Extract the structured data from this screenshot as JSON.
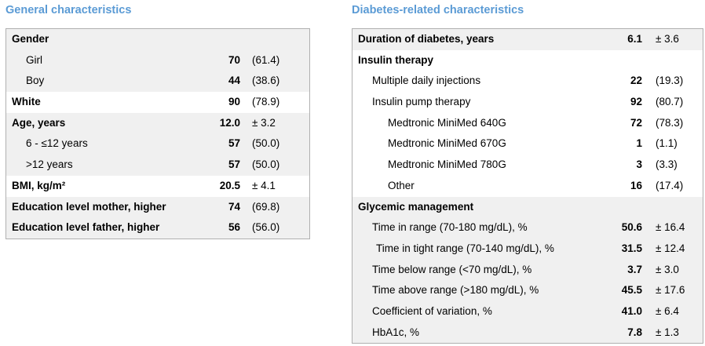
{
  "left_panel": {
    "title": "General characteristics",
    "rows": [
      {
        "label": "Gender",
        "value": "",
        "extra": ""
      },
      {
        "label": "Girl",
        "value": "70",
        "extra": "(61.4)"
      },
      {
        "label": "Boy",
        "value": "44",
        "extra": "(38.6)"
      },
      {
        "label": "White",
        "value": "90",
        "extra": "(78.9)"
      },
      {
        "label": "Age, years",
        "value": "12.0",
        "extra": "± 3.2"
      },
      {
        "label": "6 - ≤12 years",
        "value": "57",
        "extra": "(50.0)"
      },
      {
        "label": ">12 years",
        "value": "57",
        "extra": "(50.0)"
      },
      {
        "label": "BMI, kg/m²",
        "value": "20.5",
        "extra": "±  4.1"
      },
      {
        "label": "Education level mother, higher",
        "value": "74",
        "extra": "(69.8)"
      },
      {
        "label": "Education level father, higher",
        "value": "56",
        "extra": "(56.0)"
      }
    ]
  },
  "right_panel": {
    "title": "Diabetes-related characteristics",
    "rows": [
      {
        "label": "Duration of diabetes, years",
        "value": "6.1",
        "extra": "± 3.6"
      },
      {
        "label": "Insulin therapy",
        "value": "",
        "extra": ""
      },
      {
        "label": "Multiple daily injections",
        "value": "22",
        "extra": "(19.3)"
      },
      {
        "label": "Insulin pump therapy",
        "value": "92",
        "extra": "(80.7)"
      },
      {
        "label": "Medtronic MiniMed 640G",
        "value": "72",
        "extra": "(78.3)"
      },
      {
        "label": "Medtronic MiniMed 670G",
        "value": "1",
        "extra": "(1.1)"
      },
      {
        "label": "Medtronic MiniMed 780G",
        "value": "3",
        "extra": "(3.3)"
      },
      {
        "label": "Other",
        "value": "16",
        "extra": "(17.4)"
      },
      {
        "label": "Glycemic management",
        "value": "",
        "extra": ""
      },
      {
        "label": "Time in range (70-180 mg/dL), %",
        "value": "50.6",
        "extra": "± 16.4"
      },
      {
        "label": "Time in tight range (70-140 mg/dL), %",
        "value": "31.5",
        "extra": "± 12.4"
      },
      {
        "label": "Time below range (<70 mg/dL), %",
        "value": "3.7",
        "extra": "±  3.0"
      },
      {
        "label": "Time above range (>180 mg/dL), %",
        "value": "45.5",
        "extra": "± 17.6"
      },
      {
        "label": "Coefficient of variation, %",
        "value": "41.0",
        "extra": "± 6.4"
      },
      {
        "label": "HbA1c, %",
        "value": "7.8",
        "extra": "± 1.3"
      }
    ]
  }
}
